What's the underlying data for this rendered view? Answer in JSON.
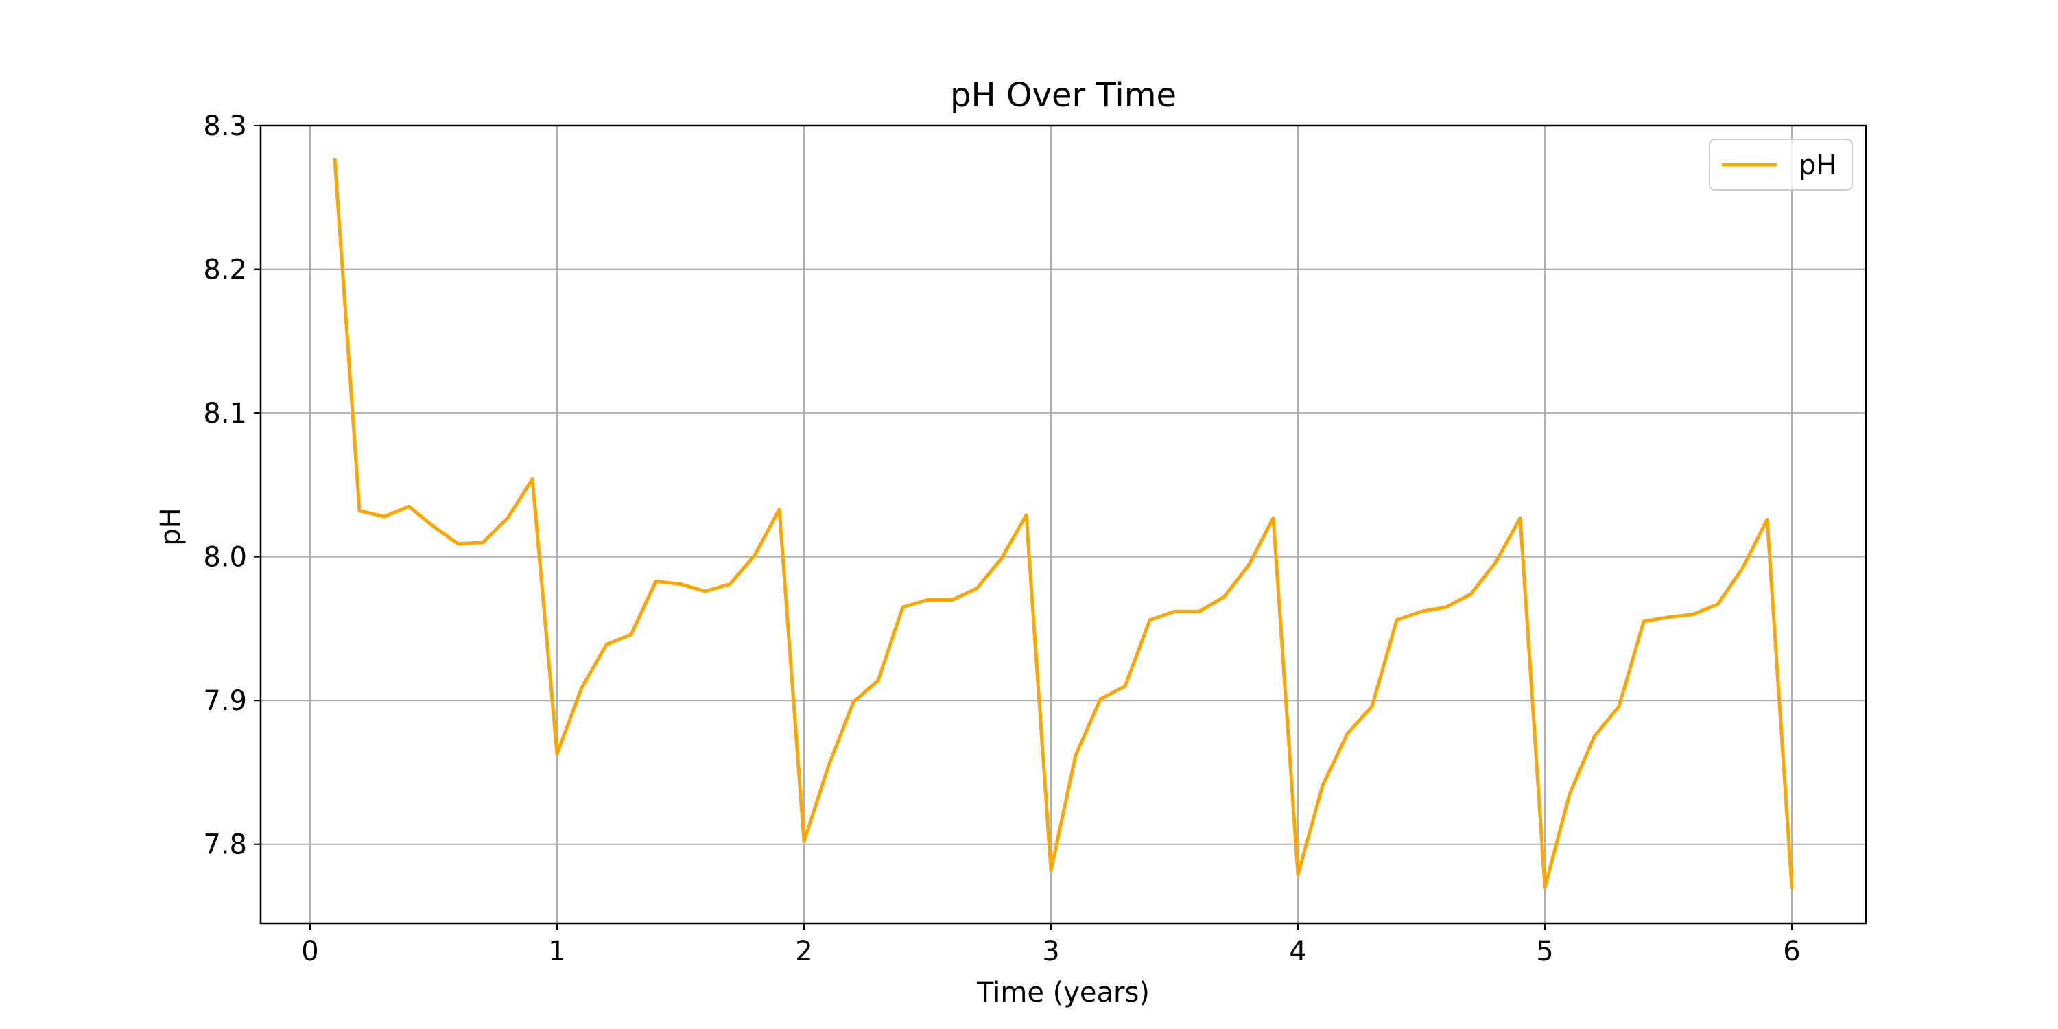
{
  "chart_data": {
    "type": "line",
    "title": "pH Over Time",
    "xlabel": "Time (years)",
    "ylabel": "pH",
    "xlim": [
      -0.2,
      6.3
    ],
    "ylim": [
      7.745,
      8.3
    ],
    "xticks": [
      "0",
      "1",
      "2",
      "3",
      "4",
      "5",
      "6"
    ],
    "yticks": [
      "7.8",
      "7.9",
      "8.0",
      "8.1",
      "8.2",
      "8.3"
    ],
    "grid": true,
    "legend_position": "top-right",
    "series": [
      {
        "name": "pH",
        "color": "#ffa500",
        "points": [
          [
            0.1,
            8.276
          ],
          [
            0.2,
            8.032
          ],
          [
            0.3,
            8.028
          ],
          [
            0.4,
            8.035
          ],
          [
            0.5,
            8.021
          ],
          [
            0.6,
            8.009
          ],
          [
            0.7,
            8.01
          ],
          [
            0.8,
            8.027
          ],
          [
            0.9,
            8.054
          ],
          [
            1.0,
            7.863
          ],
          [
            1.1,
            7.909
          ],
          [
            1.2,
            7.939
          ],
          [
            1.3,
            7.946
          ],
          [
            1.4,
            7.983
          ],
          [
            1.5,
            7.981
          ],
          [
            1.6,
            7.976
          ],
          [
            1.7,
            7.981
          ],
          [
            1.8,
            8.001
          ],
          [
            1.9,
            8.033
          ],
          [
            2.0,
            7.802
          ],
          [
            2.1,
            7.855
          ],
          [
            2.2,
            7.899
          ],
          [
            2.3,
            7.914
          ],
          [
            2.4,
            7.965
          ],
          [
            2.5,
            7.97
          ],
          [
            2.6,
            7.97
          ],
          [
            2.7,
            7.978
          ],
          [
            2.8,
            7.999
          ],
          [
            2.9,
            8.029
          ],
          [
            3.0,
            7.782
          ],
          [
            3.1,
            7.862
          ],
          [
            3.2,
            7.901
          ],
          [
            3.3,
            7.91
          ],
          [
            3.4,
            7.956
          ],
          [
            3.5,
            7.962
          ],
          [
            3.6,
            7.962
          ],
          [
            3.7,
            7.972
          ],
          [
            3.8,
            7.994
          ],
          [
            3.9,
            8.027
          ],
          [
            4.0,
            7.779
          ],
          [
            4.1,
            7.841
          ],
          [
            4.2,
            7.877
          ],
          [
            4.3,
            7.896
          ],
          [
            4.4,
            7.956
          ],
          [
            4.5,
            7.962
          ],
          [
            4.6,
            7.965
          ],
          [
            4.7,
            7.974
          ],
          [
            4.8,
            7.996
          ],
          [
            4.9,
            8.027
          ],
          [
            5.0,
            7.77
          ],
          [
            5.1,
            7.835
          ],
          [
            5.2,
            7.875
          ],
          [
            5.3,
            7.896
          ],
          [
            5.4,
            7.955
          ],
          [
            5.5,
            7.958
          ],
          [
            5.6,
            7.96
          ],
          [
            5.7,
            7.967
          ],
          [
            5.8,
            7.992
          ],
          [
            5.9,
            8.026
          ],
          [
            6.0,
            7.77
          ]
        ]
      }
    ]
  }
}
